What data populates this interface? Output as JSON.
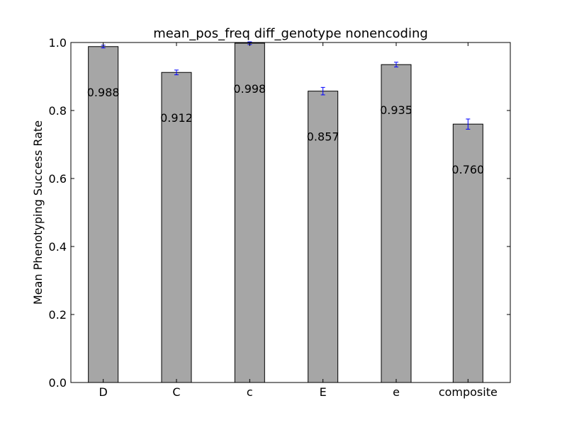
{
  "chart_data": {
    "type": "bar",
    "title": "mean_pos_freq diff_genotype nonencoding",
    "xlabel": "",
    "ylabel": "Mean Phenotyping Success Rate",
    "categories": [
      "D",
      "C",
      "c",
      "E",
      "e",
      "composite"
    ],
    "values": [
      0.988,
      0.912,
      0.998,
      0.857,
      0.935,
      0.76
    ],
    "value_labels": [
      "0.988",
      "0.912",
      "0.998",
      "0.857",
      "0.935",
      "0.760"
    ],
    "error": [
      0.004,
      0.007,
      0.004,
      0.011,
      0.007,
      0.015
    ],
    "ylim": [
      0.0,
      1.0
    ],
    "yticks": [
      0.0,
      0.2,
      0.4,
      0.6,
      0.8,
      1.0
    ],
    "ytick_labels": [
      "0.0",
      "0.2",
      "0.4",
      "0.6",
      "0.8",
      "1.0"
    ],
    "grid": false,
    "colors": {
      "bar_fill": "#a6a6a6",
      "bar_edge": "#000000",
      "error_bar": "#0000ff",
      "axis": "#000000"
    }
  }
}
